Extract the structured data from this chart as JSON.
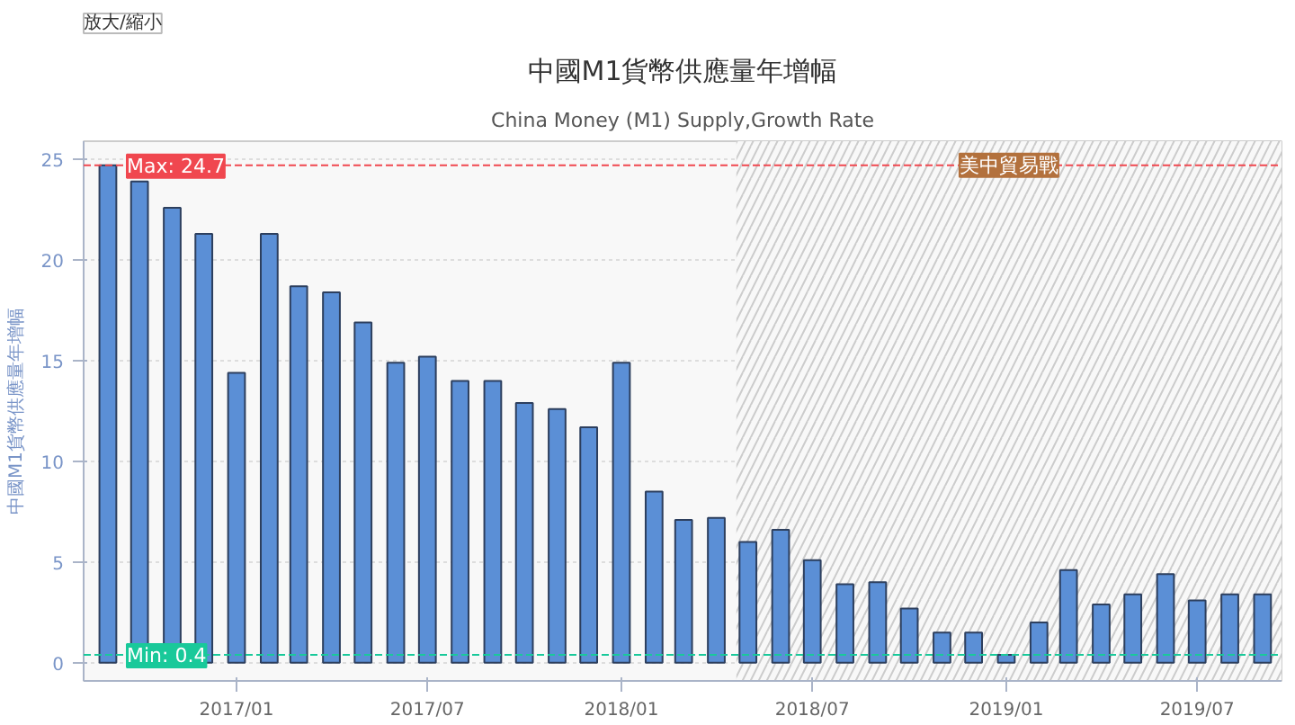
{
  "chart_data": {
    "type": "bar",
    "title": "中國M1貨幣供應量年增幅",
    "subtitle": "China Money (M1) Supply,Growth Rate",
    "ylabel": "中國M1貨幣供應量年增幅",
    "x": [
      "2016-09",
      "2016-10",
      "2016-11",
      "2016-12",
      "2017-01",
      "2017-02",
      "2017-03",
      "2017-04",
      "2017-05",
      "2017-06",
      "2017-07",
      "2017-08",
      "2017-09",
      "2017-10",
      "2017-11",
      "2017-12",
      "2018-01",
      "2018-02",
      "2018-03",
      "2018-04",
      "2018-05",
      "2018-06",
      "2018-07",
      "2018-08",
      "2018-09",
      "2018-10",
      "2018-11",
      "2018-12",
      "2019-01",
      "2019-02",
      "2019-03",
      "2019-04",
      "2019-05",
      "2019-06",
      "2019-07",
      "2019-08",
      "2019-09"
    ],
    "series": [
      {
        "color": "#5b8fd6",
        "values": [
          24.7,
          23.9,
          22.6,
          21.3,
          14.4,
          21.3,
          18.7,
          18.4,
          16.9,
          14.9,
          15.2,
          14.0,
          14.0,
          12.9,
          12.6,
          11.7,
          14.9,
          8.5,
          7.1,
          7.2,
          6.0,
          6.6,
          5.1,
          3.9,
          4.0,
          2.7,
          1.5,
          1.5,
          0.4,
          2.0,
          4.6,
          2.9,
          3.4,
          4.4,
          3.1,
          3.4,
          3.4
        ]
      }
    ],
    "xlim": [
      "2016-08-09",
      "2019-09-19"
    ],
    "xticks": [
      {
        "value": "2017-01",
        "label": "2017/01"
      },
      {
        "value": "2017-07",
        "label": "2017/07"
      },
      {
        "value": "2018-01",
        "label": "2018/01"
      },
      {
        "value": "2018-07",
        "label": "2018/07"
      },
      {
        "value": "2019-01",
        "label": "2019/01"
      },
      {
        "value": "2019-07",
        "label": "2019/07"
      }
    ],
    "ylim": [
      -0.9,
      25.9
    ],
    "yticks": [
      0,
      5,
      10,
      15,
      20,
      25
    ],
    "grid": "y",
    "ref_lines": [
      {
        "axis": "y",
        "value": 24.7,
        "label": "Max: 24.7",
        "color": "#f0474f",
        "line_style": "dashed"
      },
      {
        "axis": "y",
        "value": 0.4,
        "label": "Min: 0.4",
        "color": "#19c99a",
        "line_style": "dashed"
      }
    ],
    "bands": [
      {
        "axis": "x",
        "from": "2018-04-20",
        "to": "2019-09-19",
        "label": "美中貿易戰",
        "color": "#b3713d"
      }
    ],
    "annotations": [
      "放大/縮小"
    ]
  }
}
